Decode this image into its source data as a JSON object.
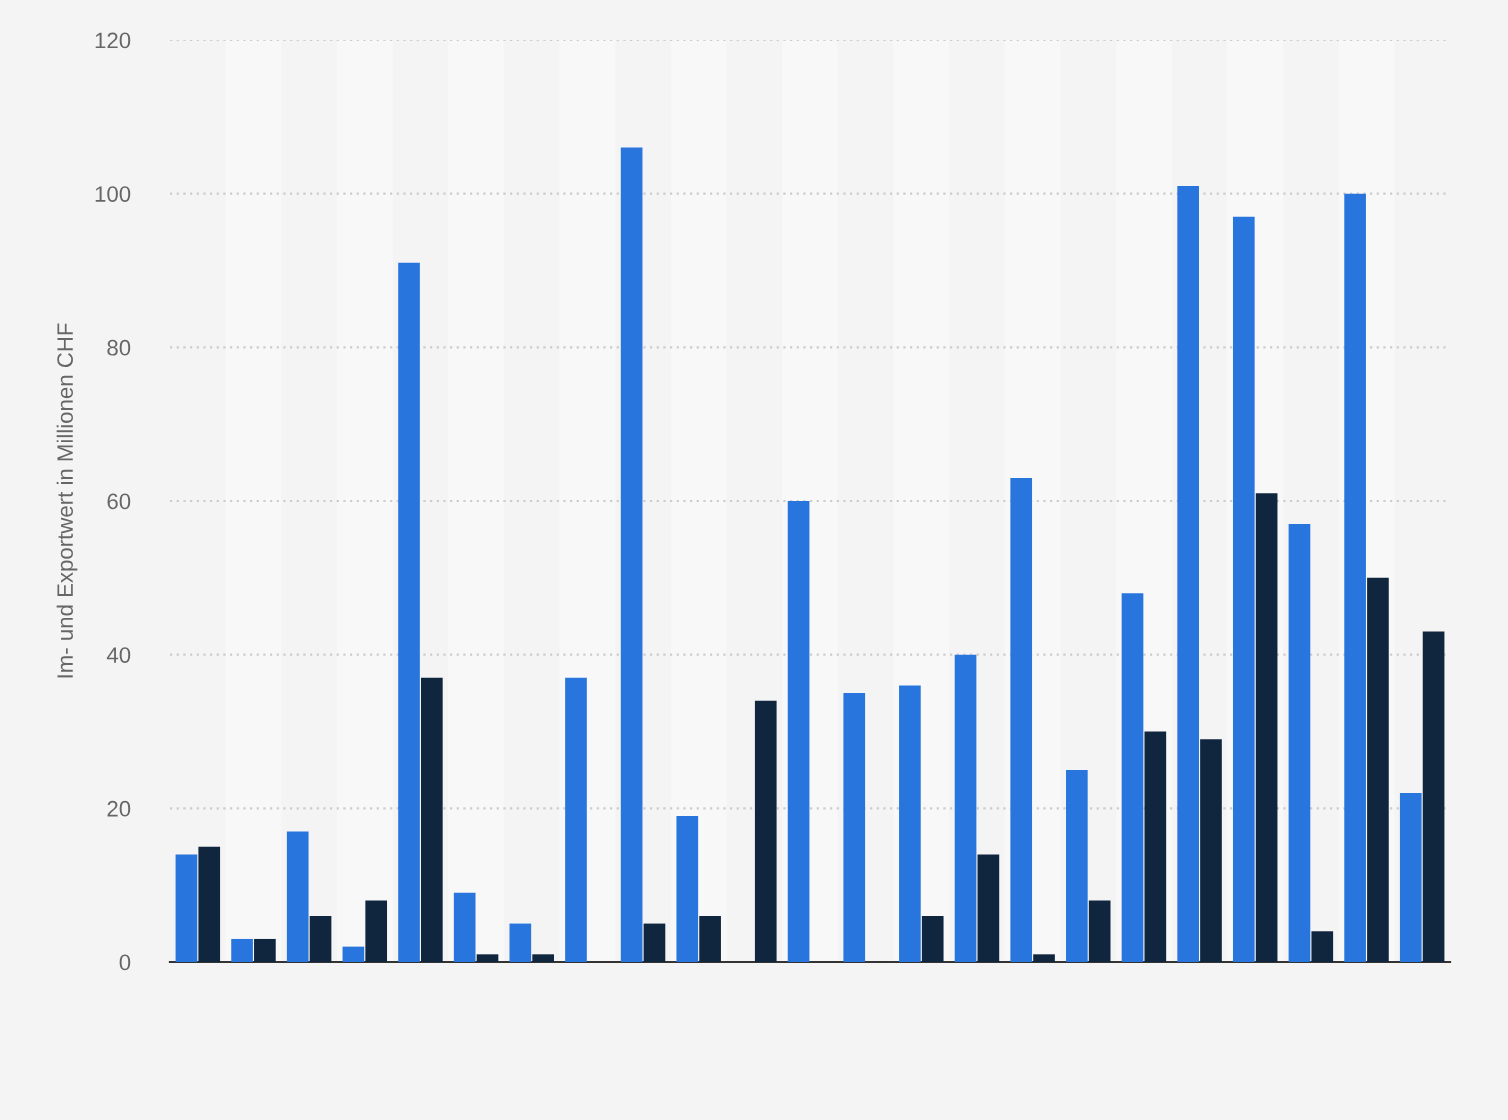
{
  "chart_data": {
    "type": "bar",
    "ylabel": "Im- und Exportwert in Millionen CHF",
    "categories": [
      null,
      null,
      null,
      null,
      null,
      null,
      null,
      null,
      null,
      null,
      null,
      null,
      null,
      null,
      null,
      null,
      null,
      null,
      null,
      null,
      null,
      null,
      null
    ],
    "series": [
      {
        "color": "#2876dd",
        "values": [
          14,
          3,
          17,
          2,
          91,
          9,
          5,
          37,
          106,
          19,
          0,
          60,
          35,
          36,
          40,
          63,
          25,
          48,
          101,
          97,
          57,
          100,
          22
        ]
      },
      {
        "color": "#10263e",
        "values": [
          15,
          3,
          6,
          8,
          37,
          1,
          1,
          0,
          5,
          6,
          34,
          0,
          0,
          6,
          14,
          1,
          8,
          30,
          29,
          61,
          4,
          50,
          43
        ]
      }
    ],
    "ylim": [
      0,
      120
    ],
    "yticks": [
      0,
      20,
      40,
      60,
      80,
      100,
      120
    ],
    "grid": "y"
  }
}
